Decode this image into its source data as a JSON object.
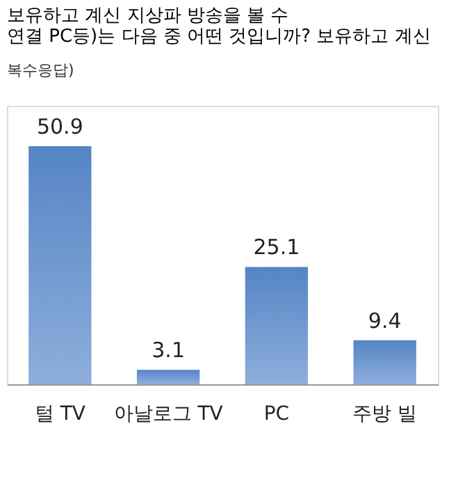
{
  "chart_data": {
    "type": "bar",
    "title": [
      "보유하고 계신 지상파 방송을 볼 수",
      "연결 PC등)는 다음 중 어떤 것입니까? 보유하고 계신"
    ],
    "subtitle": "복수응답)",
    "categories": [
      "털 TV",
      "아날로그 TV",
      "PC",
      "주방 빌"
    ],
    "values": [
      50.9,
      3.1,
      25.1,
      9.4
    ],
    "data_labels": true,
    "color": "#5585c5",
    "grid": false
  }
}
